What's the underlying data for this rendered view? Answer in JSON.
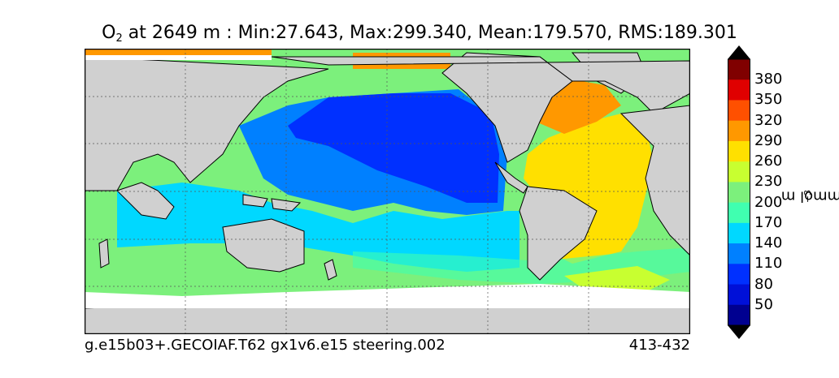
{
  "title": {
    "variable": "O",
    "subscript": "2",
    "text": " at 2649 m : Min:27.643, Max:299.340, Mean:179.570, RMS:189.301"
  },
  "footer": {
    "case": "g.e15b03+.GECOIAF.T62 gx1v6.e15 steering.002",
    "years": "413-432"
  },
  "colorbar": {
    "unit_base": "mmol m",
    "unit_exp": "−3",
    "labels": [
      "380",
      "350",
      "320",
      "290",
      "260",
      "230",
      "200",
      "170",
      "140",
      "110",
      "80",
      "50"
    ],
    "colors": [
      "#800000",
      "#e00000",
      "#ff5000",
      "#ff9800",
      "#ffe000",
      "#c8ff30",
      "#7cf07c",
      "#40ffb0",
      "#00d8ff",
      "#0080ff",
      "#0030ff",
      "#0010d8",
      "#000090"
    ]
  },
  "map_colors": {
    "land": "#d0d0d0",
    "lightgreen": "#7cf07c",
    "yellowgreen": "#c8ff30",
    "cyan": "#00d8ff",
    "aqua": "#40ffb0",
    "midblue": "#0080ff",
    "blue": "#0030ff",
    "darkblue": "#0010d8",
    "yellow": "#ffe000",
    "orange": "#ff9800"
  }
}
